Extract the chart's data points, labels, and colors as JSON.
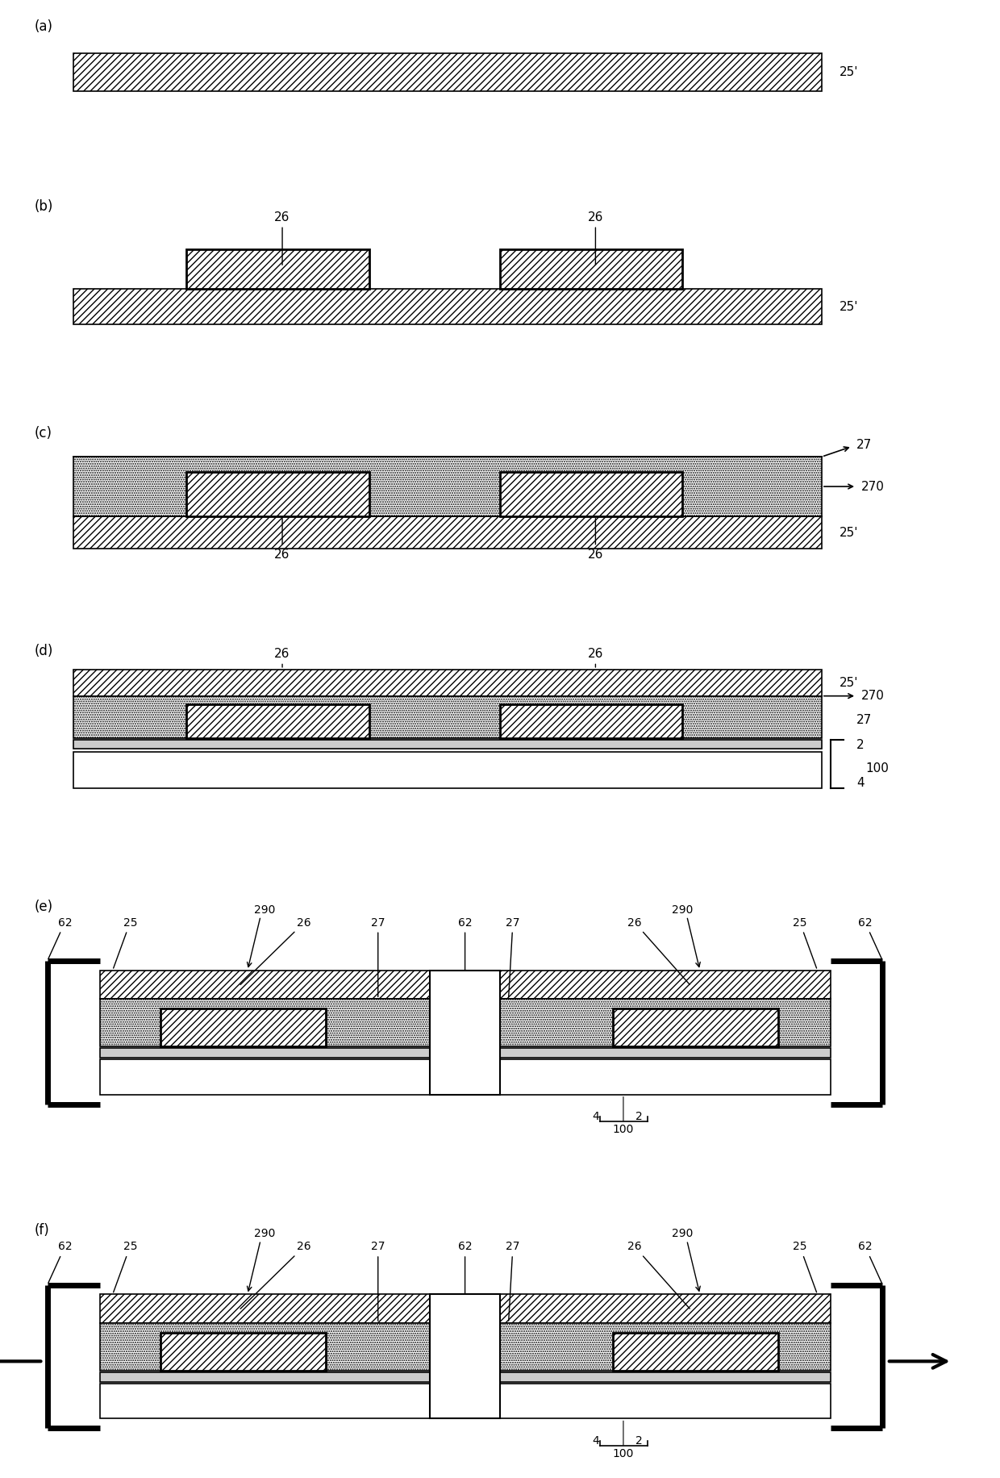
{
  "bg": "#ffffff",
  "fig_w": 12.4,
  "fig_h": 18.32,
  "panel_labels": [
    "(a)",
    "(b)",
    "(c)",
    "(d)",
    "(e)",
    "(f)"
  ]
}
